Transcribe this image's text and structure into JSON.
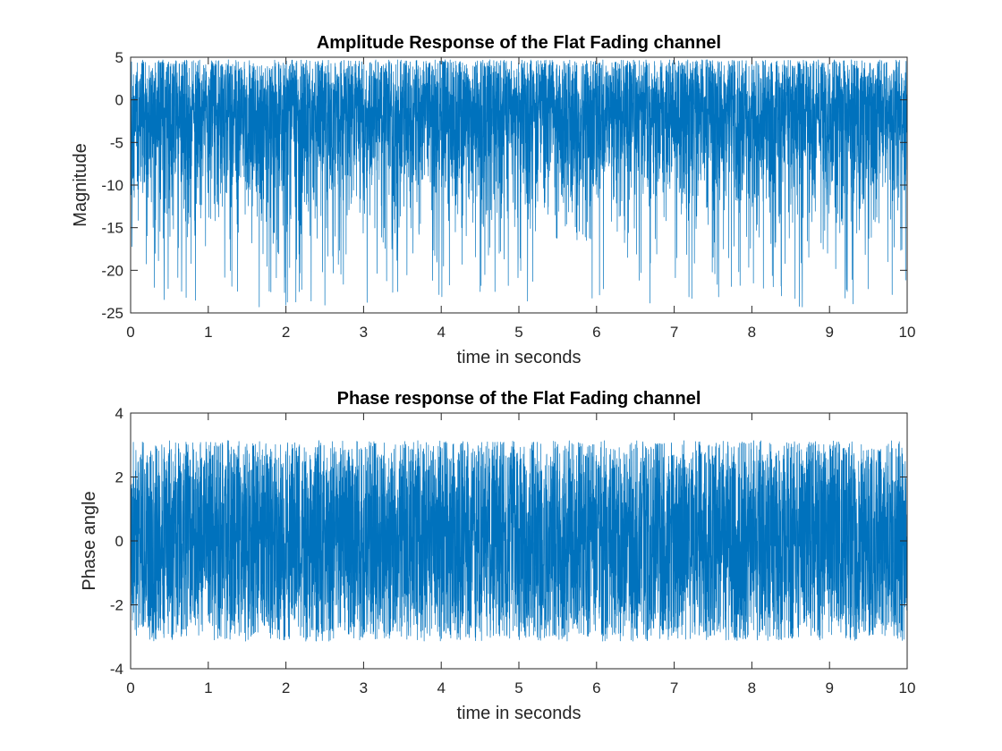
{
  "figure": {
    "background": "#ffffff"
  },
  "chart_data": [
    {
      "type": "line",
      "title": "Amplitude Response of the Flat Fading channel",
      "xlabel": "time in seconds",
      "ylabel": "Magnitude",
      "xlim": [
        0,
        10
      ],
      "ylim": [
        -25,
        5
      ],
      "xticks": [
        0,
        1,
        2,
        3,
        4,
        5,
        6,
        7,
        8,
        9,
        10
      ],
      "yticks": [
        5,
        0,
        -5,
        -10,
        -15,
        -20,
        -25
      ],
      "grid": false,
      "legend": "none",
      "line_color": "#0072BD",
      "series": [
        {
          "sampling": "dense Rayleigh fading envelope in dB, approx 1000 samples/s over 0–10 s",
          "typical_range": [
            -8,
            3
          ],
          "max_value": 4.7,
          "notable_deep_fades": [
            {
              "x": 0.43,
              "y": -18.0
            },
            {
              "x": 0.78,
              "y": -19.2
            },
            {
              "x": 2.18,
              "y": -20.3
            },
            {
              "x": 4.03,
              "y": -19.5
            },
            {
              "x": 5.18,
              "y": -21.3
            },
            {
              "x": 8.02,
              "y": -21.5
            },
            {
              "x": 8.38,
              "y": -23.0
            },
            {
              "x": 8.65,
              "y": -24.3
            },
            {
              "x": 9.75,
              "y": -19.0
            }
          ]
        }
      ]
    },
    {
      "type": "line",
      "title": "Phase response of the Flat Fading channel",
      "xlabel": "time in seconds",
      "ylabel": "Phase angle",
      "xlim": [
        0,
        10
      ],
      "ylim": [
        -4,
        4
      ],
      "xticks": [
        0,
        1,
        2,
        3,
        4,
        5,
        6,
        7,
        8,
        9,
        10
      ],
      "yticks": [
        4,
        2,
        0,
        -2,
        -4
      ],
      "grid": false,
      "legend": "none",
      "line_color": "#0072BD",
      "series": [
        {
          "sampling": "dense wrapped phase, approx 1000 samples/s over 0–10 s",
          "range": [
            -3.1416,
            3.1416
          ]
        }
      ]
    }
  ]
}
